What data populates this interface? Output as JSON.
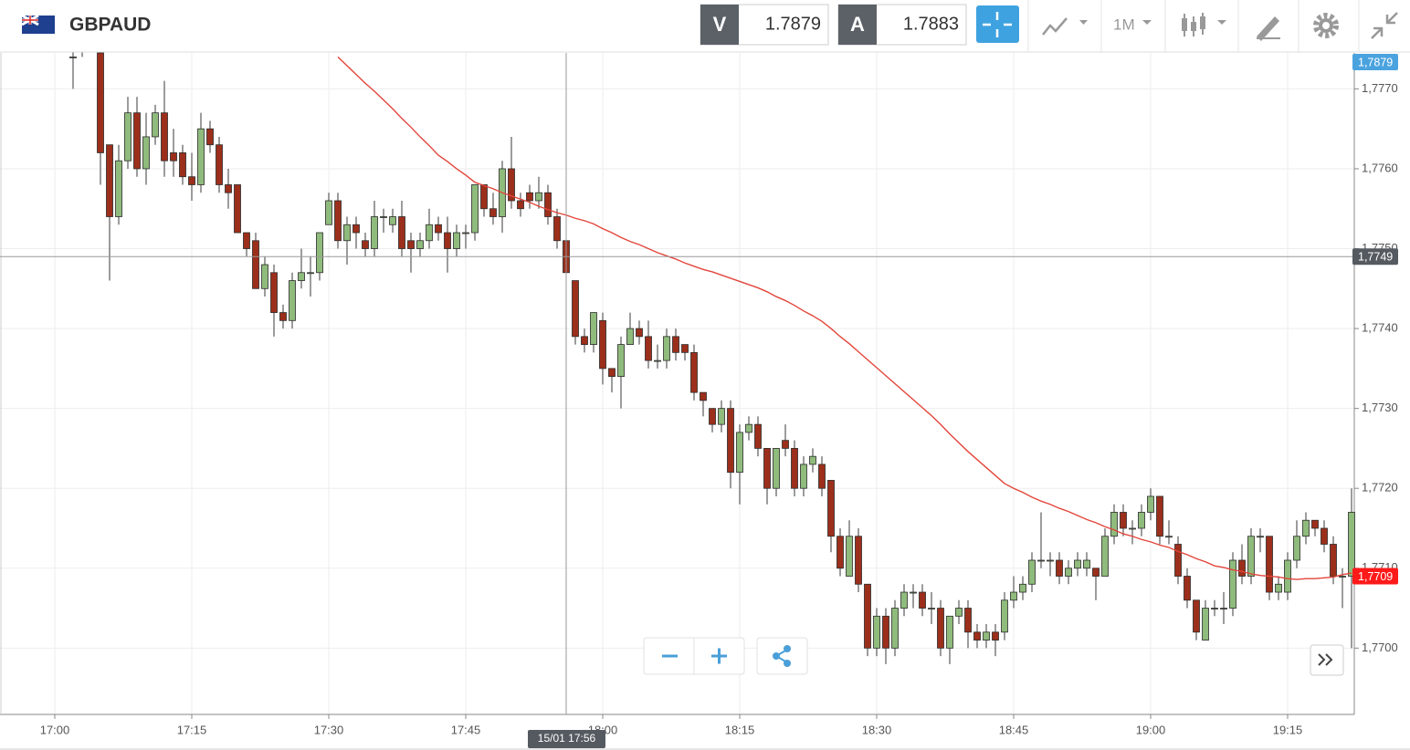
{
  "header": {
    "symbol": "GBPAUD",
    "sell_label": "V",
    "sell_price": 1.7879,
    "buy_label": "A",
    "buy_price": 1.7883,
    "timeframe": "1M"
  },
  "chart_data": {
    "type": "candlestick",
    "categories": [
      "17:00",
      null,
      null,
      null,
      null,
      null,
      null,
      null,
      null,
      null,
      null,
      null,
      null,
      null,
      null,
      "17:15",
      null,
      null,
      null,
      null,
      null,
      null,
      null,
      null,
      null,
      null,
      null,
      null,
      null,
      null,
      "17:30",
      null,
      null,
      null,
      null,
      null,
      null,
      null,
      null,
      null,
      null,
      null,
      null,
      null,
      null,
      "17:45",
      null,
      null,
      null,
      null,
      null,
      null,
      null,
      null,
      null,
      null,
      null,
      null,
      null,
      null,
      "18:00",
      null,
      null,
      null,
      null,
      null,
      null,
      null,
      null,
      null,
      null,
      null,
      null,
      null,
      null,
      "18:15",
      null,
      null,
      null,
      null,
      null,
      null,
      null,
      null,
      null,
      null,
      null,
      null,
      null,
      null,
      "18:30",
      null,
      null,
      null,
      null,
      null,
      null,
      null,
      null,
      null,
      null,
      null,
      null,
      null,
      null,
      "18:45",
      null,
      null,
      null,
      null,
      null,
      null,
      null,
      null,
      null,
      null,
      null,
      null,
      null,
      null,
      "19:00",
      null,
      null,
      null,
      null,
      null,
      null,
      null,
      null,
      null,
      null,
      null,
      null,
      null,
      null,
      "19:15",
      null,
      null,
      null,
      null,
      null,
      null,
      null
    ],
    "open": [
      null,
      null,
      1.7774,
      1.7775,
      1.7776,
      1.77745,
      1.7763,
      1.7754,
      1.7761,
      1.7767,
      1.776,
      1.7764,
      1.7767,
      1.7762,
      1.7762,
      1.7759,
      1.7758,
      1.7765,
      1.7763,
      1.7758,
      1.7758,
      1.7752,
      1.7751,
      1.7745,
      1.7747,
      1.7742,
      1.7741,
      1.7746,
      1.7747,
      1.7747,
      1.7753,
      1.7756,
      1.7751,
      1.7753,
      1.7751,
      1.775,
      1.7754,
      1.7753,
      1.7754,
      1.7751,
      1.775,
      1.7751,
      1.7753,
      1.7752,
      1.775,
      1.7752,
      1.7752,
      1.7758,
      1.7755,
      1.7754,
      1.776,
      1.7756,
      1.7757,
      1.7756,
      1.7757,
      1.7754,
      1.7751,
      1.7746,
      1.7739,
      1.7738,
      1.7741,
      1.7735,
      1.7734,
      1.7738,
      1.774,
      1.7739,
      1.7736,
      1.7736,
      1.7739,
      1.7738,
      1.7737,
      1.7732,
      1.773,
      1.7728,
      1.773,
      1.7722,
      1.7727,
      1.7728,
      1.7725,
      1.772,
      1.7726,
      1.7725,
      1.772,
      1.7723,
      1.7723,
      1.7721,
      1.7714,
      1.7709,
      1.7714,
      1.7708,
      1.77,
      1.7704,
      1.77,
      1.7705,
      1.7707,
      1.7707,
      1.7705,
      1.7705,
      1.77,
      1.7704,
      1.7705,
      1.7702,
      1.7701,
      1.7702,
      1.7702,
      1.7706,
      1.7707,
      1.7708,
      1.7711,
      1.7711,
      1.7711,
      1.7709,
      1.771,
      1.771,
      1.771,
      1.7709,
      1.7714,
      1.7717,
      1.7715,
      1.7715,
      1.7717,
      1.7719,
      1.7714,
      1.7713,
      1.7709,
      1.7706,
      1.7701,
      1.7705,
      1.7705,
      1.7705,
      1.7711,
      1.7709,
      1.7714,
      1.7714,
      1.7707,
      1.7707,
      1.7711,
      1.7714,
      1.7716,
      1.7715,
      1.7713,
      1.7709,
      1.7709
    ],
    "high": [
      null,
      null,
      1.7776,
      1.7776,
      1.7777,
      1.7776,
      1.7763,
      1.7763,
      1.7769,
      1.7769,
      1.7767,
      1.7768,
      1.7771,
      1.7765,
      1.7763,
      1.7762,
      1.7767,
      1.7766,
      1.7764,
      1.776,
      1.7758,
      1.7752,
      1.7752,
      1.7749,
      1.7748,
      1.7743,
      1.7747,
      1.775,
      1.7749,
      1.7752,
      1.7757,
      1.7757,
      1.7754,
      1.7754,
      1.7752,
      1.7756,
      1.7755,
      1.7755,
      1.7756,
      1.7752,
      1.7752,
      1.7755,
      1.7754,
      1.7754,
      1.7753,
      1.7753,
      1.7758,
      1.7758,
      1.7757,
      1.7761,
      1.7764,
      1.7757,
      1.7758,
      1.7759,
      1.7758,
      1.7755,
      1.7752,
      1.7746,
      1.774,
      1.7742,
      1.7742,
      1.7735,
      1.7739,
      1.7742,
      1.7741,
      1.7741,
      1.7738,
      1.774,
      1.774,
      1.7738,
      1.7738,
      1.7732,
      1.773,
      1.7731,
      1.7731,
      1.7728,
      1.7729,
      1.7729,
      1.7725,
      1.7725,
      1.7728,
      1.7726,
      1.7724,
      1.7725,
      1.7724,
      1.7721,
      1.7715,
      1.7716,
      1.7715,
      1.7708,
      1.7705,
      1.7705,
      1.7706,
      1.7708,
      1.7708,
      1.7708,
      1.7707,
      1.7706,
      1.7704,
      1.7706,
      1.7706,
      1.7703,
      1.7703,
      1.7703,
      1.7707,
      1.7709,
      1.7709,
      1.7712,
      1.7717,
      1.7712,
      1.7712,
      1.7711,
      1.7712,
      1.7712,
      1.771,
      1.7715,
      1.7718,
      1.7718,
      1.7716,
      1.7718,
      1.772,
      1.7719,
      1.7716,
      1.7714,
      1.771,
      1.7706,
      1.7706,
      1.7706,
      1.7707,
      1.7712,
      1.7713,
      1.7715,
      1.7715,
      1.7714,
      1.7709,
      1.7712,
      1.7716,
      1.7717,
      1.7716,
      1.7716,
      1.7714,
      1.771,
      1.772
    ],
    "low": [
      null,
      null,
      1.777,
      1.7774,
      1.7775,
      1.7758,
      1.7746,
      1.7753,
      1.776,
      1.7759,
      1.7758,
      1.7763,
      1.7759,
      1.7759,
      1.7758,
      1.7756,
      1.7757,
      1.7762,
      1.7757,
      1.7755,
      1.7752,
      1.7749,
      1.7745,
      1.7744,
      1.7739,
      1.774,
      1.774,
      1.7745,
      1.7744,
      1.7746,
      1.7753,
      1.775,
      1.7748,
      1.775,
      1.7749,
      1.7749,
      1.7752,
      1.7752,
      1.7749,
      1.7747,
      1.7749,
      1.775,
      1.7751,
      1.7747,
      1.7749,
      1.775,
      1.7751,
      1.7754,
      1.7753,
      1.7752,
      1.7755,
      1.7754,
      1.7755,
      1.7755,
      1.7753,
      1.775,
      1.7745,
      1.7738,
      1.7737,
      1.7737,
      1.7733,
      1.7732,
      1.773,
      1.7738,
      1.7738,
      1.7735,
      1.7735,
      1.7735,
      1.7736,
      1.7736,
      1.7731,
      1.7729,
      1.7727,
      1.7727,
      1.772,
      1.7718,
      1.7726,
      1.7724,
      1.7718,
      1.7719,
      1.7724,
      1.7719,
      1.7719,
      1.7722,
      1.7719,
      1.7712,
      1.7709,
      1.7709,
      1.7707,
      1.7699,
      1.7699,
      1.7698,
      1.7699,
      1.7704,
      1.7705,
      1.7704,
      1.7703,
      1.7699,
      1.7698,
      1.7703,
      1.77,
      1.77,
      1.77,
      1.7699,
      1.7701,
      1.7705,
      1.7706,
      1.7707,
      1.771,
      1.7709,
      1.7708,
      1.7708,
      1.7709,
      1.7709,
      1.7706,
      1.7709,
      1.7713,
      1.7714,
      1.7713,
      1.7714,
      1.7716,
      1.7713,
      1.7713,
      1.7708,
      1.7705,
      1.7701,
      1.7701,
      1.7704,
      1.7703,
      1.7704,
      1.7708,
      1.7708,
      1.7712,
      1.7706,
      1.7706,
      1.7706,
      1.771,
      1.7713,
      1.7714,
      1.7712,
      1.7708,
      1.7705,
      1.77
    ],
    "close": [
      null,
      null,
      1.7774,
      1.7775,
      1.7776,
      1.7762,
      1.7754,
      1.7761,
      1.7767,
      1.776,
      1.7764,
      1.7767,
      1.7761,
      1.7761,
      1.7759,
      1.7758,
      1.7765,
      1.7763,
      1.7758,
      1.7757,
      1.7752,
      1.775,
      1.7745,
      1.7748,
      1.7742,
      1.7741,
      1.7746,
      1.7747,
      1.7747,
      1.7752,
      1.7756,
      1.7751,
      1.7753,
      1.7752,
      1.775,
      1.7754,
      1.7754,
      1.7754,
      1.775,
      1.775,
      1.7751,
      1.7753,
      1.7752,
      1.775,
      1.7752,
      1.7752,
      1.7758,
      1.7755,
      1.7754,
      1.776,
      1.7756,
      1.7755,
      1.7756,
      1.7757,
      1.7754,
      1.7751,
      1.7747,
      1.7739,
      1.7738,
      1.7742,
      1.7735,
      1.7734,
      1.7738,
      1.774,
      1.7739,
      1.7736,
      1.7736,
      1.7739,
      1.7737,
      1.7737,
      1.7732,
      1.7731,
      1.7728,
      1.773,
      1.7722,
      1.7727,
      1.7728,
      1.7725,
      1.772,
      1.7725,
      1.7725,
      1.772,
      1.7723,
      1.7724,
      1.772,
      1.7714,
      1.771,
      1.7714,
      1.7708,
      1.77,
      1.7704,
      1.77,
      1.7705,
      1.7707,
      1.7707,
      1.7705,
      1.7705,
      1.77,
      1.7704,
      1.7705,
      1.7702,
      1.7701,
      1.7702,
      1.7701,
      1.7706,
      1.7707,
      1.7708,
      1.7711,
      1.7711,
      1.7711,
      1.7709,
      1.771,
      1.7711,
      1.7711,
      1.7709,
      1.7714,
      1.7717,
      1.7715,
      1.7715,
      1.7717,
      1.7719,
      1.7714,
      1.7714,
      1.7709,
      1.7706,
      1.7702,
      1.7705,
      1.7705,
      1.7705,
      1.7711,
      1.7709,
      1.7714,
      1.7714,
      1.7707,
      1.7708,
      1.7711,
      1.7714,
      1.7716,
      1.7715,
      1.7713,
      1.7709,
      1.7709,
      1.7717
    ],
    "up_color": "#8fbb7c",
    "down_color": "#9c2f1b",
    "overlay": {
      "color": "#e3453a",
      "values": [
        null,
        null,
        null,
        null,
        null,
        null,
        null,
        null,
        null,
        null,
        null,
        null,
        null,
        null,
        null,
        null,
        null,
        null,
        null,
        null,
        null,
        null,
        null,
        null,
        null,
        null,
        null,
        null,
        null,
        null,
        null,
        1.7774,
        1.77729,
        1.77718,
        1.77707,
        1.77697,
        1.77686,
        1.77675,
        1.77663,
        1.77652,
        1.7764,
        1.77629,
        1.77617,
        1.77609,
        1.776,
        1.77592,
        1.77583,
        1.77579,
        1.77575,
        1.7757,
        1.77566,
        1.77562,
        1.77558,
        1.77553,
        1.77549,
        1.77545,
        1.77542,
        1.77538,
        1.77535,
        1.77531,
        1.77525,
        1.7752,
        1.77514,
        1.77509,
        1.77505,
        1.775,
        1.77495,
        1.77491,
        1.77487,
        1.77482,
        1.77478,
        1.77474,
        1.77471,
        1.77467,
        1.77463,
        1.77459,
        1.77455,
        1.77451,
        1.77446,
        1.7744,
        1.77435,
        1.77429,
        1.77422,
        1.77416,
        1.77409,
        1.774,
        1.7739,
        1.77381,
        1.77371,
        1.77361,
        1.77351,
        1.77341,
        1.77331,
        1.77321,
        1.77311,
        1.77301,
        1.77291,
        1.7728,
        1.77268,
        1.77257,
        1.77246,
        1.77236,
        1.77226,
        1.77216,
        1.77206,
        1.772,
        1.77195,
        1.77189,
        1.77184,
        1.7718,
        1.77175,
        1.77171,
        1.77166,
        1.77161,
        1.77157,
        1.77152,
        1.77148,
        1.77143,
        1.7714,
        1.77136,
        1.77133,
        1.77129,
        1.77126,
        1.77121,
        1.77117,
        1.77112,
        1.77108,
        1.77103,
        1.77101,
        1.77098,
        1.77096,
        1.77093,
        1.77091,
        1.7709,
        1.77089,
        1.77087,
        1.77086,
        1.77087,
        1.77087,
        1.77088,
        1.77089,
        1.77092,
        1.77094
      ]
    },
    "ylim": [
      1.76917,
      1.77745
    ],
    "yticks": [
      {
        "value": 1.77,
        "label": "1,7700"
      },
      {
        "value": 1.771,
        "label": "1,7710"
      },
      {
        "value": 1.772,
        "label": "1,7720"
      },
      {
        "value": 1.773,
        "label": "1,7730"
      },
      {
        "value": 1.774,
        "label": "1,7740"
      },
      {
        "value": 1.775,
        "label": "1,7750"
      },
      {
        "value": 1.776,
        "label": "1,7760"
      },
      {
        "value": 1.777,
        "label": "1,7770"
      }
    ],
    "grid": true,
    "price_tags": [
      {
        "value": 1.7879,
        "label": "1,7879",
        "color": "#4aa3df"
      },
      {
        "value": 1.7749,
        "label": "1,7749",
        "color": "#555a60"
      },
      {
        "value": 1.7709,
        "label": "1,7709",
        "color": "#ff1a1a"
      }
    ],
    "crosshair_time": "15/01 17:56"
  }
}
